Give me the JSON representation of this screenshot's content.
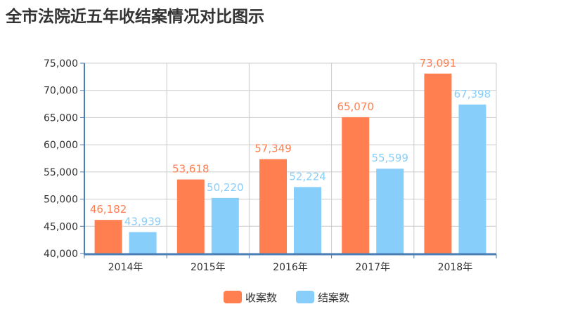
{
  "chart_data": {
    "type": "bar",
    "title": "全市法院近五年收结案情况对比图示",
    "categories": [
      "2014年",
      "2015年",
      "2016年",
      "2017年",
      "2018年"
    ],
    "series": [
      {
        "name": "收案数",
        "values": [
          46182,
          53618,
          57349,
          65070,
          73091
        ],
        "color": "#FF7F50",
        "labels": [
          "46,182",
          "53,618",
          "57,349",
          "65,070",
          "73,091"
        ]
      },
      {
        "name": "结案数",
        "values": [
          43939,
          50220,
          52224,
          55599,
          67398
        ],
        "color": "#87CEFA",
        "labels": [
          "43,939",
          "50,220",
          "52,224",
          "55,599",
          "67,398"
        ]
      }
    ],
    "ylim": [
      40000,
      75000
    ],
    "yticks": [
      "40,000",
      "45,000",
      "50,000",
      "55,000",
      "60,000",
      "65,000",
      "70,000",
      "75,000"
    ],
    "grid": true,
    "legend": "bottom"
  }
}
